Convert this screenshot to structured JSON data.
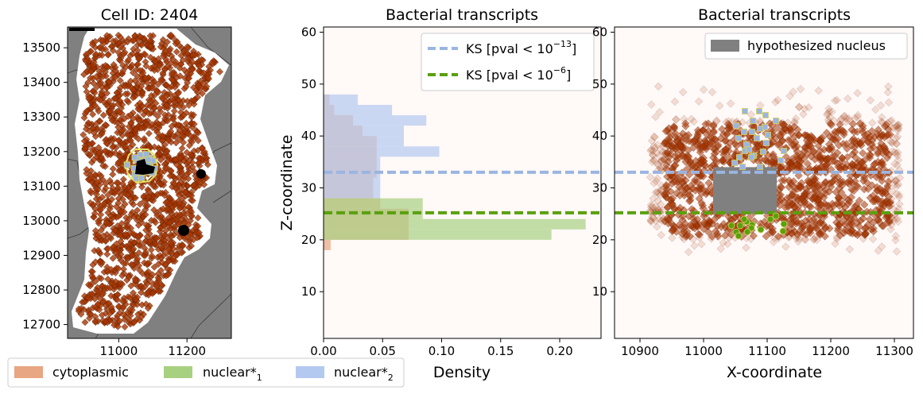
{
  "chart_data": [
    {
      "type": "scatter",
      "title": "Cell ID: 2404",
      "xlabel": "",
      "ylabel": "",
      "xlim": [
        10850,
        11330
      ],
      "ylim": [
        12660,
        13560
      ],
      "xticks": [
        "11000",
        "11200"
      ],
      "yticks": [
        "12700",
        "12800",
        "12900",
        "13000",
        "13100",
        "13200",
        "13300",
        "13400",
        "13500"
      ],
      "background_color": "#808080",
      "cell_color": "#ffffff",
      "transcript_color": "#a63603",
      "nuclear_marker_color": "#9ab5e0"
    },
    {
      "type": "bar",
      "orientation": "horizontal",
      "title": "Bacterial transcripts",
      "xlabel": "Density",
      "ylabel": "Z-coordinate",
      "xlim": [
        0,
        0.235
      ],
      "ylim": [
        1,
        61
      ],
      "xticks": [
        "0.00",
        "0.05",
        "0.10",
        "0.15",
        "0.20"
      ],
      "yticks": [
        "10",
        "20",
        "30",
        "40",
        "50",
        "60"
      ],
      "bin_width": 2,
      "series": [
        {
          "name": "cytoplasmic",
          "color": "#e8a682",
          "bins": [
            [
              18,
              0.006
            ],
            [
              20,
              0.072
            ],
            [
              22,
              0.072
            ],
            [
              24,
              0.072
            ],
            [
              26,
              0.048
            ],
            [
              28,
              0.042
            ],
            [
              30,
              0.042
            ],
            [
              32,
              0.045
            ],
            [
              34,
              0.045
            ],
            [
              36,
              0.045
            ],
            [
              38,
              0.045
            ],
            [
              40,
              0.033
            ],
            [
              42,
              0.025
            ],
            [
              44,
              0.009
            ],
            [
              46,
              0.005
            ]
          ]
        },
        {
          "name": "nuclear*₁",
          "color": "#a8d081",
          "bins": [
            [
              20,
              0.193
            ],
            [
              22,
              0.222
            ],
            [
              24,
              0.084
            ],
            [
              26,
              0.084
            ]
          ]
        },
        {
          "name": "nuclear*₂",
          "color": "#b4c9f0",
          "bins": [
            [
              28,
              0.048
            ],
            [
              30,
              0.048
            ],
            [
              32,
              0.048
            ],
            [
              34,
              0.048
            ],
            [
              36,
              0.098
            ],
            [
              38,
              0.068
            ],
            [
              40,
              0.068
            ],
            [
              42,
              0.087
            ],
            [
              44,
              0.058
            ],
            [
              46,
              0.029
            ]
          ]
        }
      ],
      "hlines": [
        {
          "y": 33,
          "color": "#9ab5e0",
          "label_pre": "KS [pval ",
          "label_sym": "< 10",
          "label_exp": "−13",
          "label_post": "]"
        },
        {
          "y": 25.2,
          "color": "#5aa00f",
          "label_pre": "KS [pval ",
          "label_sym": "< 10",
          "label_exp": "−6",
          "label_post": "]"
        }
      ],
      "background_color": "#fff9f8"
    },
    {
      "type": "scatter",
      "title": "Bacterial transcripts",
      "xlabel": "X-coordinate",
      "ylabel": "",
      "xlim": [
        10860,
        11330
      ],
      "ylim": [
        1,
        61
      ],
      "xticks": [
        "10900",
        "11000",
        "11100",
        "11200",
        "11300"
      ],
      "yticks": [
        "10",
        "20",
        "30",
        "40",
        "50",
        "60"
      ],
      "nucleus_box": {
        "x": [
          11015,
          11115
        ],
        "z": [
          25,
          34
        ],
        "color": "#808080",
        "label": "hypothesized nucleus"
      },
      "hlines": [
        {
          "y": 33,
          "color": "#9ab5e0"
        },
        {
          "y": 25.2,
          "color": "#5aa00f"
        }
      ],
      "transcript_color": "#a63603",
      "nuclear2_color": "#9ab5e0",
      "nuclear1_color": "#5aa00f",
      "background_color": "#fff9f8"
    }
  ],
  "bottom_legend": [
    {
      "label": "cytoplasmic",
      "color": "#e8a682"
    },
    {
      "label_main": "nuclear*",
      "label_sub": "1",
      "color": "#a8d081"
    },
    {
      "label_main": "nuclear*",
      "label_sub": "2",
      "color": "#b4c9f0"
    }
  ]
}
